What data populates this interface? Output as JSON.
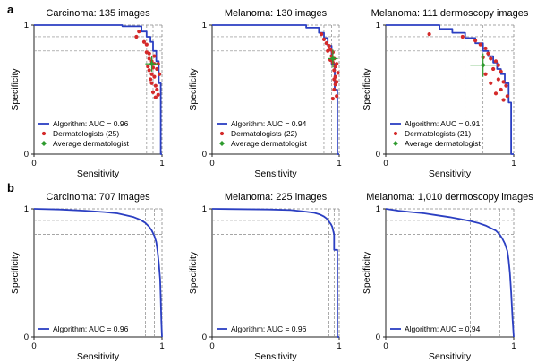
{
  "panel_letters": [
    "a",
    "b"
  ],
  "colors": {
    "roc": "#2b3fc2",
    "dermatologist": "#d42a2a",
    "average": "#2e9b2e",
    "guide": "#888888",
    "axis": "#222222"
  },
  "chart_data": [
    {
      "type": "line",
      "title": "Carcinoma: 135 images",
      "xlabel": "Sensitivity",
      "ylabel": "Specificity",
      "xlim": [
        0,
        1
      ],
      "ylim": [
        0,
        1
      ],
      "xtick_labels": [
        "0",
        "1"
      ],
      "ytick_labels": [
        "0",
        "1"
      ],
      "reference_lines": [
        0.91,
        0.8
      ],
      "series": [
        {
          "name": "Algorithm: AUC = 0.96",
          "x": [
            0,
            0.69,
            0.69,
            0.84,
            0.84,
            0.88,
            0.88,
            0.91,
            0.91,
            0.93,
            0.93,
            0.955,
            0.955,
            0.975,
            0.975,
            0.99,
            0.99,
            1.0
          ],
          "y": [
            1,
            1,
            0.99,
            0.99,
            0.95,
            0.95,
            0.91,
            0.91,
            0.87,
            0.87,
            0.8,
            0.8,
            0.72,
            0.72,
            0.55,
            0.55,
            0.0,
            0.0
          ]
        }
      ],
      "dermatologists_label": "Dermatologists (25)",
      "dermatologists": [
        [
          0.8,
          0.91
        ],
        [
          0.82,
          0.95
        ],
        [
          0.86,
          0.87
        ],
        [
          0.88,
          0.85
        ],
        [
          0.88,
          0.79
        ],
        [
          0.9,
          0.78
        ],
        [
          0.9,
          0.74
        ],
        [
          0.92,
          0.72
        ],
        [
          0.94,
          0.7
        ],
        [
          0.93,
          0.67
        ],
        [
          0.9,
          0.65
        ],
        [
          0.92,
          0.62
        ],
        [
          0.94,
          0.6
        ],
        [
          0.92,
          0.55
        ],
        [
          0.95,
          0.53
        ],
        [
          0.96,
          0.5
        ],
        [
          0.93,
          0.48
        ],
        [
          0.97,
          0.46
        ],
        [
          0.95,
          0.44
        ],
        [
          0.91,
          0.58
        ],
        [
          0.89,
          0.68
        ],
        [
          0.96,
          0.66
        ],
        [
          0.98,
          0.62
        ],
        [
          0.94,
          0.76
        ],
        [
          0.97,
          0.7
        ]
      ],
      "average_label": "Average dermatologist",
      "average": {
        "x": 0.92,
        "y": 0.7,
        "xerr": 0.05,
        "yerr": 0.06
      }
    },
    {
      "type": "line",
      "title": "Melanoma: 130 images",
      "xlabel": "Sensitivity",
      "ylabel": "Specificity",
      "xlim": [
        0,
        1
      ],
      "ylim": [
        0,
        1
      ],
      "xtick_labels": [
        "0",
        "1"
      ],
      "ytick_labels": [
        "0",
        "1"
      ],
      "reference_lines": [
        0.91,
        0.8
      ],
      "series": [
        {
          "name": "Algorithm: AUC = 0.94",
          "x": [
            0,
            0.74,
            0.74,
            0.84,
            0.84,
            0.88,
            0.88,
            0.91,
            0.91,
            0.94,
            0.94,
            0.965,
            0.965,
            0.985,
            0.985,
            1.0
          ],
          "y": [
            1,
            1,
            0.98,
            0.98,
            0.94,
            0.94,
            0.9,
            0.9,
            0.84,
            0.84,
            0.7,
            0.7,
            0.5,
            0.5,
            0.0,
            0.0
          ]
        }
      ],
      "dermatologists_label": "Dermatologists (22)",
      "dermatologists": [
        [
          0.86,
          0.93
        ],
        [
          0.88,
          0.89
        ],
        [
          0.9,
          0.86
        ],
        [
          0.92,
          0.84
        ],
        [
          0.93,
          0.81
        ],
        [
          0.95,
          0.79
        ],
        [
          0.94,
          0.76
        ],
        [
          0.96,
          0.74
        ],
        [
          0.95,
          0.71
        ],
        [
          0.97,
          0.68
        ],
        [
          0.96,
          0.65
        ],
        [
          0.97,
          0.6
        ],
        [
          0.98,
          0.56
        ],
        [
          0.96,
          0.5
        ],
        [
          0.98,
          0.45
        ],
        [
          0.95,
          0.43
        ],
        [
          0.97,
          0.54
        ],
        [
          0.91,
          0.8
        ],
        [
          0.93,
          0.73
        ],
        [
          0.99,
          0.63
        ],
        [
          0.98,
          0.7
        ],
        [
          0.96,
          0.58
        ]
      ],
      "average_label": "Average dermatologist",
      "average": {
        "x": 0.95,
        "y": 0.74,
        "xerr": 0.04,
        "yerr": 0.07
      }
    },
    {
      "type": "line",
      "title": "Melanoma: 111 dermoscopy images",
      "xlabel": "Sensitivity",
      "ylabel": "Specificity",
      "xlim": [
        0,
        1
      ],
      "ylim": [
        0,
        1
      ],
      "xtick_labels": [
        "0",
        "1"
      ],
      "ytick_labels": [
        "0",
        "1"
      ],
      "reference_lines": [
        0.91,
        0.8
      ],
      "series": [
        {
          "name": "Algorithm: AUC = 0.91",
          "x": [
            0,
            0.42,
            0.42,
            0.52,
            0.52,
            0.62,
            0.62,
            0.7,
            0.7,
            0.76,
            0.76,
            0.8,
            0.8,
            0.84,
            0.84,
            0.87,
            0.87,
            0.9,
            0.9,
            0.93,
            0.93,
            0.96,
            0.96,
            0.98,
            0.98,
            1.0
          ],
          "y": [
            1,
            1,
            0.97,
            0.97,
            0.94,
            0.94,
            0.9,
            0.9,
            0.86,
            0.86,
            0.8,
            0.8,
            0.76,
            0.76,
            0.71,
            0.71,
            0.66,
            0.66,
            0.62,
            0.62,
            0.55,
            0.55,
            0.4,
            0.4,
            0.0,
            0.0
          ]
        }
      ],
      "dermatologists_label": "Dermatologists (21)",
      "dermatologists": [
        [
          0.34,
          0.93
        ],
        [
          0.6,
          0.91
        ],
        [
          0.7,
          0.88
        ],
        [
          0.74,
          0.85
        ],
        [
          0.78,
          0.82
        ],
        [
          0.8,
          0.78
        ],
        [
          0.76,
          0.75
        ],
        [
          0.82,
          0.74
        ],
        [
          0.86,
          0.72
        ],
        [
          0.88,
          0.69
        ],
        [
          0.84,
          0.66
        ],
        [
          0.9,
          0.64
        ],
        [
          0.88,
          0.58
        ],
        [
          0.92,
          0.56
        ],
        [
          0.94,
          0.53
        ],
        [
          0.9,
          0.5
        ],
        [
          0.86,
          0.47
        ],
        [
          0.95,
          0.45
        ],
        [
          0.92,
          0.42
        ],
        [
          0.78,
          0.62
        ],
        [
          0.82,
          0.55
        ]
      ],
      "average_label": "Average dermatologist",
      "average": {
        "x": 0.76,
        "y": 0.69,
        "xerr": 0.1,
        "yerr": 0.09
      }
    },
    {
      "type": "line",
      "title": "Carcinoma: 707 images",
      "xlabel": "Sensitivity",
      "ylabel": "Specificity",
      "xlim": [
        0,
        1
      ],
      "ylim": [
        0,
        1
      ],
      "xtick_labels": [
        "0",
        "1"
      ],
      "ytick_labels": [
        "0",
        "1"
      ],
      "reference_lines": [
        0.91,
        0.8
      ],
      "series": [
        {
          "name": "Algorithm: AUC = 0.96",
          "x": [
            0,
            0.2,
            0.4,
            0.55,
            0.65,
            0.72,
            0.78,
            0.83,
            0.87,
            0.9,
            0.92,
            0.94,
            0.955,
            0.965,
            0.975,
            0.985,
            0.99,
            0.995,
            1.0
          ],
          "y": [
            1,
            0.995,
            0.985,
            0.975,
            0.965,
            0.95,
            0.935,
            0.915,
            0.89,
            0.86,
            0.83,
            0.79,
            0.74,
            0.67,
            0.58,
            0.45,
            0.3,
            0.12,
            0.0
          ]
        }
      ]
    },
    {
      "type": "line",
      "title": "Melanoma: 225 images",
      "xlabel": "Sensitivity",
      "ylabel": "Specificity",
      "xlim": [
        0,
        1
      ],
      "ylim": [
        0,
        1
      ],
      "xtick_labels": [
        "0",
        "1"
      ],
      "ytick_labels": [
        "0",
        "1"
      ],
      "reference_lines": [
        0.91,
        0.8
      ],
      "series": [
        {
          "name": "Algorithm: AUC = 0.96",
          "x": [
            0,
            0.45,
            0.62,
            0.72,
            0.8,
            0.85,
            0.88,
            0.9,
            0.92,
            0.935,
            0.945,
            0.95,
            0.96,
            0.96,
            0.985,
            0.985,
            1.0
          ],
          "y": [
            1,
            0.995,
            0.99,
            0.98,
            0.97,
            0.955,
            0.94,
            0.925,
            0.9,
            0.88,
            0.86,
            0.84,
            0.8,
            0.68,
            0.68,
            0.0,
            0.0
          ]
        }
      ]
    },
    {
      "type": "line",
      "title": "Melanoma: 1,010 dermoscopy images",
      "xlabel": "Sensitivity",
      "ylabel": "Specificity",
      "xlim": [
        0,
        1
      ],
      "ylim": [
        0,
        1
      ],
      "xtick_labels": [
        "0",
        "1"
      ],
      "ytick_labels": [
        "0",
        "1"
      ],
      "reference_lines": [
        0.91,
        0.8
      ],
      "series": [
        {
          "name": "Algorithm: AUC = 0.94",
          "x": [
            0,
            0.1,
            0.2,
            0.3,
            0.4,
            0.5,
            0.58,
            0.66,
            0.72,
            0.78,
            0.82,
            0.86,
            0.89,
            0.91,
            0.93,
            0.95,
            0.96,
            0.97,
            0.98,
            0.99,
            1.0
          ],
          "y": [
            1,
            0.985,
            0.975,
            0.965,
            0.95,
            0.935,
            0.92,
            0.905,
            0.89,
            0.87,
            0.85,
            0.83,
            0.8,
            0.77,
            0.73,
            0.67,
            0.6,
            0.5,
            0.35,
            0.15,
            0.0
          ]
        }
      ]
    }
  ]
}
